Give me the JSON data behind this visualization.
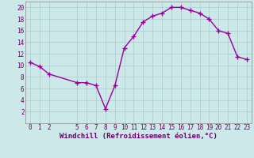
{
  "x": [
    0,
    1,
    2,
    5,
    6,
    7,
    8,
    9,
    10,
    11,
    12,
    13,
    14,
    15,
    16,
    17,
    18,
    19,
    20,
    21,
    22,
    23
  ],
  "y": [
    10.5,
    9.8,
    8.5,
    7.0,
    7.0,
    6.5,
    2.5,
    6.5,
    13.0,
    15.0,
    17.5,
    18.5,
    19.0,
    20.0,
    20.0,
    19.5,
    19.0,
    18.0,
    16.0,
    15.5,
    11.5,
    11.0
  ],
  "line_color": "#990099",
  "marker": "+",
  "marker_size": 4,
  "background_color": "#cce8e8",
  "grid_color": "#aacccc",
  "xlabel": "Windchill (Refroidissement éolien,°C)",
  "ylabel": "",
  "xlim": [
    -0.5,
    23.5
  ],
  "ylim": [
    0,
    21
  ],
  "xticks": [
    0,
    1,
    2,
    5,
    6,
    7,
    8,
    9,
    10,
    11,
    12,
    13,
    14,
    15,
    16,
    17,
    18,
    19,
    20,
    21,
    22,
    23
  ],
  "yticks": [
    2,
    4,
    6,
    8,
    10,
    12,
    14,
    16,
    18,
    20
  ],
  "tick_fontsize": 5.5,
  "xlabel_fontsize": 6.5,
  "linewidth": 1.0
}
